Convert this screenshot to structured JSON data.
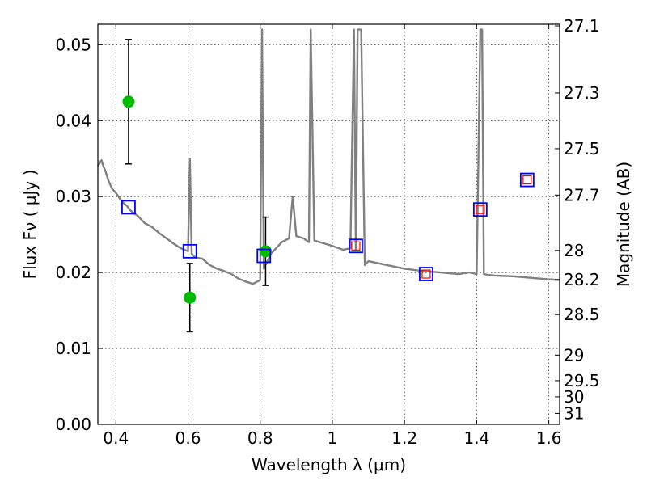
{
  "chart_data": {
    "type": "scatter",
    "title": "",
    "xlabel": "Wavelength  λ (μm)",
    "ylabel": "Flux  Fν  ( μJy )",
    "ylabel_right": "Magnitude (AB)",
    "xlim": [
      0.35,
      1.63
    ],
    "ylim": [
      0.0,
      0.0527
    ],
    "grid": true,
    "x_ticks": [
      {
        "value": 0.4,
        "label": "0.4"
      },
      {
        "value": 0.6,
        "label": "0.6"
      },
      {
        "value": 0.8,
        "label": "0.8"
      },
      {
        "value": 1.0,
        "label": "1"
      },
      {
        "value": 1.2,
        "label": "1.2"
      },
      {
        "value": 1.4,
        "label": "1.4"
      },
      {
        "value": 1.6,
        "label": "1.6"
      }
    ],
    "y_ticks": [
      {
        "value": 0.0,
        "label": "0.00"
      },
      {
        "value": 0.01,
        "label": "0.01"
      },
      {
        "value": 0.02,
        "label": "0.02"
      },
      {
        "value": 0.03,
        "label": "0.03"
      },
      {
        "value": 0.04,
        "label": "0.04"
      },
      {
        "value": 0.05,
        "label": "0.05"
      }
    ],
    "mag_ticks": [
      {
        "value": 27.1,
        "label": "27.1"
      },
      {
        "value": 27.3,
        "label": "27.3"
      },
      {
        "value": 27.5,
        "label": "27.5"
      },
      {
        "value": 27.7,
        "label": "27.7"
      },
      {
        "value": 28.0,
        "label": "28"
      },
      {
        "value": 28.2,
        "label": "28.2"
      },
      {
        "value": 28.5,
        "label": "28.5"
      },
      {
        "value": 29.0,
        "label": "29"
      },
      {
        "value": 29.5,
        "label": "29.5"
      },
      {
        "value": 30.0,
        "label": "30"
      },
      {
        "value": 31.0,
        "label": "31"
      }
    ],
    "series": [
      {
        "kind": "line",
        "color": "#808080",
        "x": [
          0.35,
          0.36,
          0.365,
          0.37,
          0.38,
          0.39,
          0.4,
          0.41,
          0.42,
          0.43,
          0.44,
          0.45,
          0.46,
          0.47,
          0.48,
          0.5,
          0.52,
          0.54,
          0.56,
          0.58,
          0.6,
          0.605,
          0.61,
          0.62,
          0.64,
          0.66,
          0.68,
          0.7,
          0.72,
          0.74,
          0.76,
          0.78,
          0.8,
          0.805,
          0.81,
          0.82,
          0.83,
          0.84,
          0.86,
          0.88,
          0.89,
          0.9,
          0.92,
          0.935,
          0.94,
          0.95,
          0.98,
          1.0,
          1.03,
          1.05,
          1.06,
          1.065,
          1.07,
          1.08,
          1.09,
          1.1,
          1.15,
          1.2,
          1.25,
          1.3,
          1.35,
          1.38,
          1.4,
          1.41,
          1.415,
          1.42,
          1.43,
          1.45,
          1.5,
          1.55,
          1.6,
          1.63
        ],
        "y": [
          0.034,
          0.0348,
          0.034,
          0.0335,
          0.032,
          0.031,
          0.0305,
          0.0298,
          0.0292,
          0.0288,
          0.0282,
          0.0278,
          0.0275,
          0.027,
          0.0265,
          0.026,
          0.0252,
          0.0245,
          0.0238,
          0.0232,
          0.0228,
          0.035,
          0.0225,
          0.022,
          0.0218,
          0.021,
          0.0205,
          0.0202,
          0.0198,
          0.0192,
          0.0188,
          0.0185,
          0.019,
          0.052,
          0.0205,
          0.0215,
          0.0225,
          0.023,
          0.024,
          0.0245,
          0.03,
          0.0248,
          0.0245,
          0.024,
          0.052,
          0.0242,
          0.0238,
          0.0235,
          0.023,
          0.0232,
          0.052,
          0.023,
          0.052,
          0.052,
          0.021,
          0.0215,
          0.021,
          0.0205,
          0.0202,
          0.02,
          0.0198,
          0.02,
          0.0198,
          0.052,
          0.052,
          0.0198,
          0.0197,
          0.0196,
          0.0195,
          0.0193,
          0.0191,
          0.019
        ]
      },
      {
        "kind": "points",
        "marker": "circle",
        "color": "#00bb00",
        "x": [
          0.435,
          0.605,
          0.815
        ],
        "y": [
          0.0425,
          0.0167,
          0.0228
        ],
        "yerr_low": [
          0.0082,
          0.0045,
          0.0045
        ],
        "yerr_high": [
          0.0082,
          0.0045,
          0.0045
        ]
      },
      {
        "kind": "points",
        "marker": "square-open",
        "color": "#0000ff",
        "x": [
          0.435,
          0.605,
          0.81,
          1.065,
          1.26,
          1.41,
          1.54
        ],
        "y": [
          0.0286,
          0.0228,
          0.0222,
          0.0235,
          0.0198,
          0.0283,
          0.0322
        ]
      },
      {
        "kind": "points",
        "marker": "square-open-small",
        "color": "#ff0000",
        "x": [
          1.065,
          1.26,
          1.41,
          1.54
        ],
        "y": [
          0.0235,
          0.0198,
          0.0283,
          0.0322
        ]
      }
    ]
  }
}
